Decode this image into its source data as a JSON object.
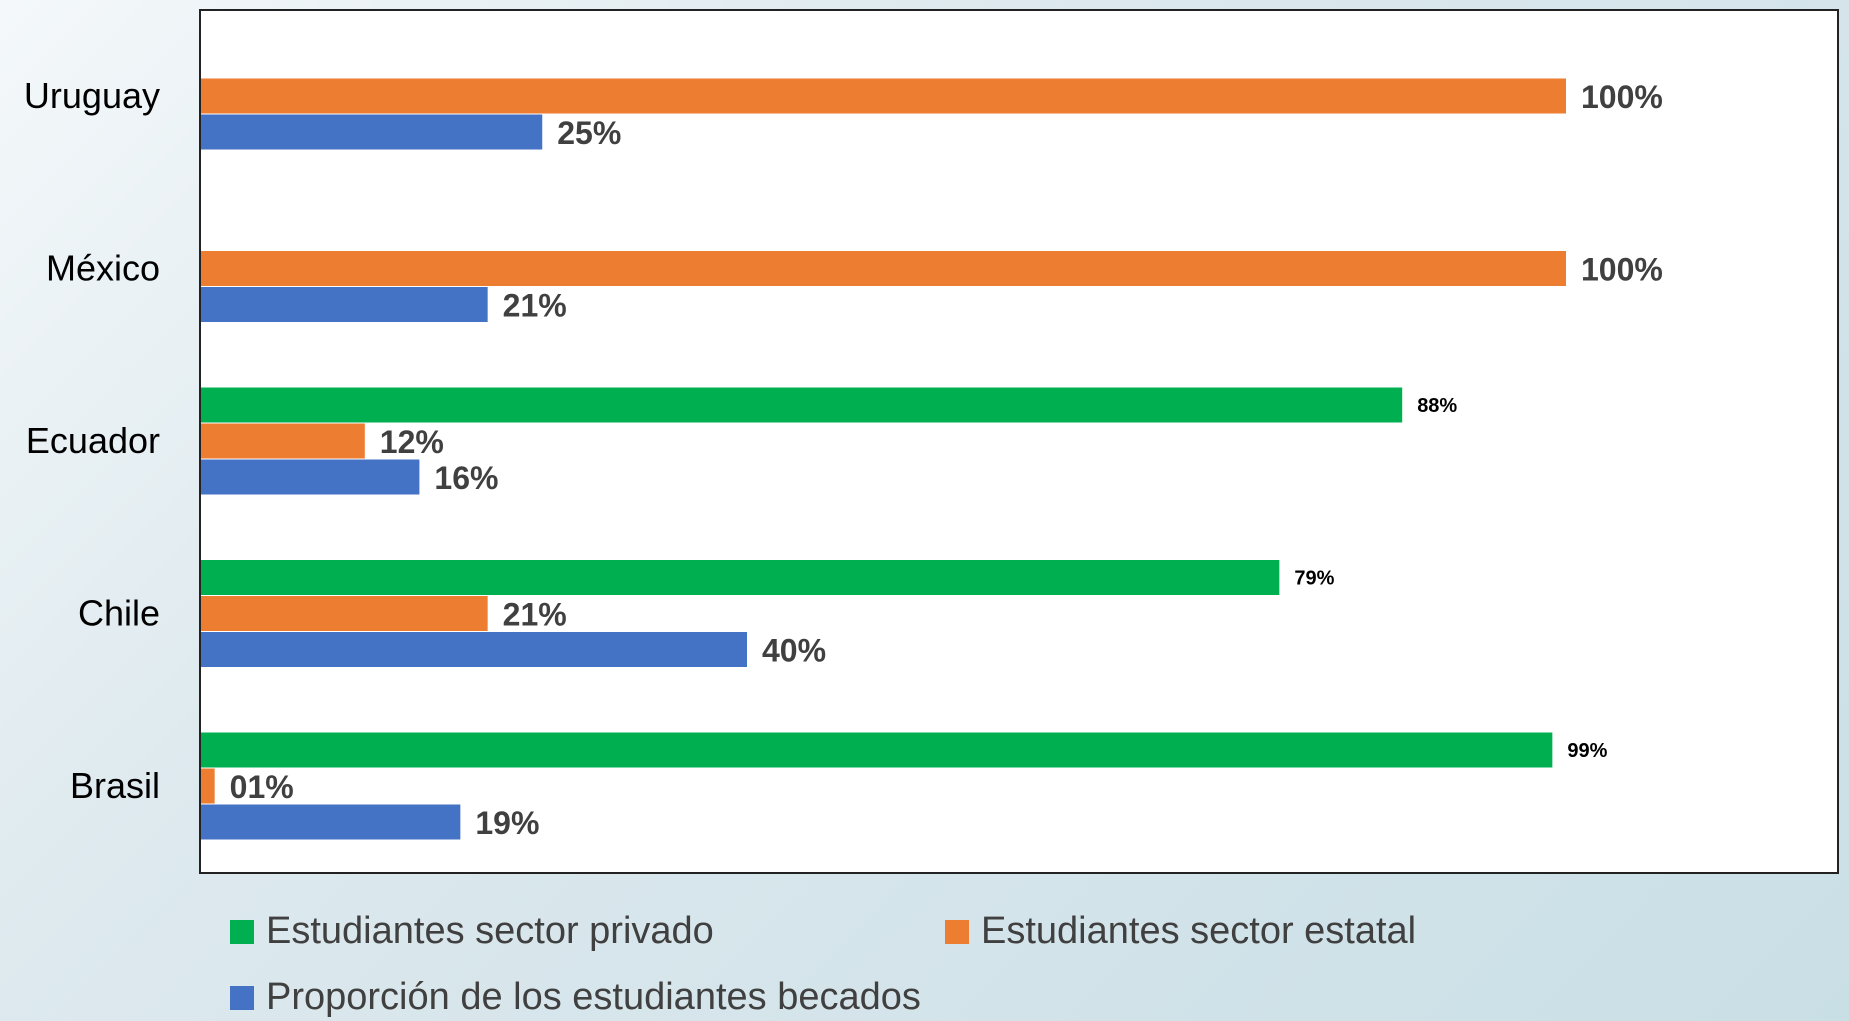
{
  "chart_data": {
    "type": "bar",
    "orientation": "horizontal",
    "categories": [
      "Uruguay",
      "México",
      "Ecuador",
      "Chile",
      "Brasil"
    ],
    "series": [
      {
        "name": "Estudiantes sector privado",
        "color": "#00b050",
        "values": [
          null,
          null,
          88,
          79,
          99
        ],
        "labels": [
          "",
          "",
          "88%",
          "79%",
          "99%"
        ]
      },
      {
        "name": "Estudiantes sector estatal",
        "color": "#ed7d31",
        "values": [
          100,
          100,
          12,
          21,
          1
        ],
        "labels": [
          "100%",
          "100%",
          "12%",
          "21%",
          "01%"
        ]
      },
      {
        "name": "Proporción de los estudiantes becados",
        "color": "#4472c4",
        "values": [
          25,
          21,
          16,
          40,
          19
        ],
        "labels": [
          "25%",
          "21%",
          "16%",
          "40%",
          "19%"
        ]
      }
    ],
    "xlim": [
      0,
      120
    ],
    "grid": false,
    "legend_position": "bottom"
  }
}
